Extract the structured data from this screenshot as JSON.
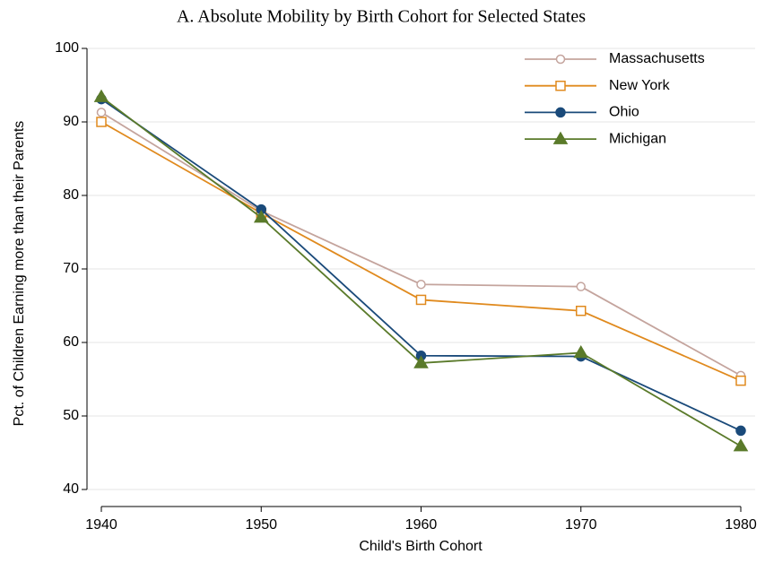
{
  "chart_data": {
    "type": "line",
    "title": "A.  Absolute Mobility by Birth Cohort for Selected States",
    "x_label": "Child's Birth Cohort",
    "y_label": "Pct. of Children Earning more than their Parents",
    "x": [
      1940,
      1950,
      1960,
      1970,
      1980
    ],
    "xlim": [
      1940,
      1980
    ],
    "xticks": [
      1940,
      1950,
      1960,
      1970,
      1980
    ],
    "ylim": [
      40,
      100
    ],
    "yticks": [
      40,
      50,
      60,
      70,
      80,
      90,
      100
    ],
    "grid": true,
    "legend": "top-right",
    "series": [
      {
        "name": "Massachusetts",
        "color": "#c4a49d",
        "marker": "circle",
        "filled": false,
        "values": [
          91.3,
          77.9,
          67.9,
          67.6,
          55.5
        ]
      },
      {
        "name": "New York",
        "color": "#e08a1e",
        "marker": "square",
        "filled": false,
        "values": [
          90.0,
          77.6,
          65.8,
          64.3,
          54.8
        ]
      },
      {
        "name": "Ohio",
        "color": "#1a4a7a",
        "marker": "circle",
        "filled": true,
        "values": [
          93.1,
          78.1,
          58.2,
          58.1,
          48.0
        ]
      },
      {
        "name": "Michigan",
        "color": "#5a7a2a",
        "marker": "triangle",
        "filled": true,
        "values": [
          93.4,
          77.0,
          57.2,
          58.6,
          45.9
        ]
      }
    ]
  }
}
